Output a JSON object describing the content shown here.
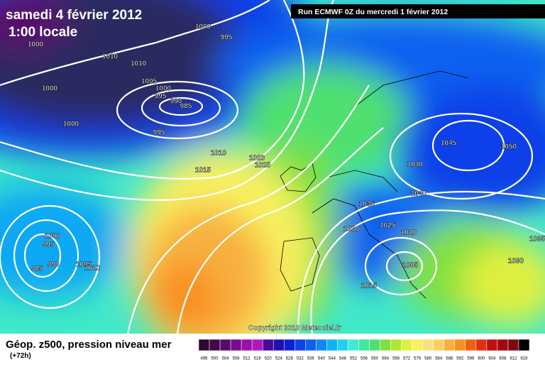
{
  "header": {
    "title": "samedi 4 février 2012",
    "time": "1:00 locale",
    "run": "Run ECMWF 0Z du mercredi 1 février 2012"
  },
  "copyright": "Copyright 2012 Meteociel.fr",
  "footer": {
    "title": "Géop. z500, pression niveau mer",
    "subtitle": "(+72h)"
  },
  "isobar_labels": [
    "1000",
    "995",
    "1000",
    "1010",
    "1010",
    "1005",
    "1000",
    "995",
    "990",
    "985",
    "1000",
    "1000",
    "995",
    "1010",
    "1015",
    "1020",
    "1025",
    "1045",
    "1050",
    "1040",
    "1040",
    "1035",
    "1030",
    "1025",
    "1020",
    "1035",
    "1030",
    "1005",
    "1015",
    "1000",
    "995",
    "990",
    "985",
    "1005",
    "1010"
  ],
  "legend": {
    "levels": [
      "496",
      "500",
      "504",
      "508",
      "512",
      "516",
      "520",
      "524",
      "528",
      "532",
      "536",
      "540",
      "544",
      "548",
      "552",
      "556",
      "560",
      "564",
      "568",
      "572",
      "576",
      "580",
      "584",
      "588",
      "592",
      "596",
      "600",
      "604",
      "608",
      "612",
      "616"
    ],
    "colors": [
      "#2a0a2e",
      "#3e0a4a",
      "#5a0a6e",
      "#7a0a8e",
      "#9a10a8",
      "#b018b8",
      "#4a0a9a",
      "#2010b0",
      "#1020d0",
      "#1040e8",
      "#1060f0",
      "#1088f4",
      "#10b0f4",
      "#20d0f0",
      "#40e8d8",
      "#40e8a0",
      "#50e070",
      "#80e040",
      "#b0e830",
      "#e0f040",
      "#f8f060",
      "#f8e080",
      "#f8d060",
      "#f8b040",
      "#f89020",
      "#f06010",
      "#e03010",
      "#c01010",
      "#a00810",
      "#800810",
      "#000000"
    ]
  }
}
